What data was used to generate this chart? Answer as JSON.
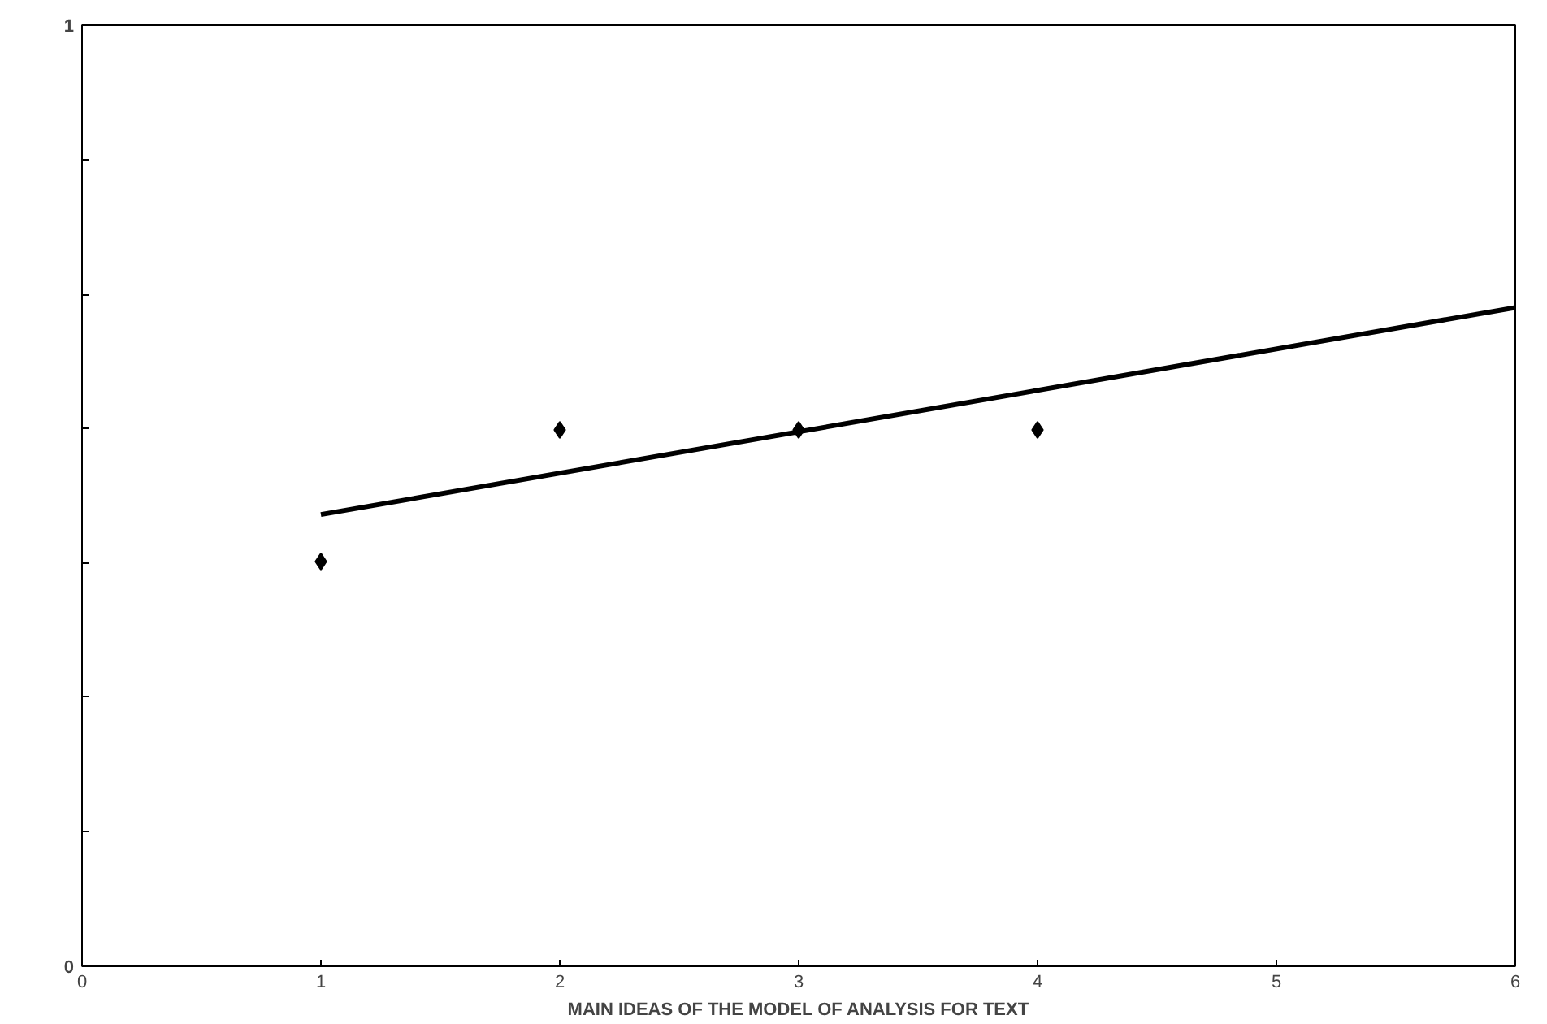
{
  "chart_data": {
    "type": "scatter",
    "xlabel": "MAIN IDEAS OF THE MODEL OF ANALYSIS FOR TEXT",
    "xlim": [
      0,
      6
    ],
    "xticks": [
      0,
      1,
      2,
      3,
      4,
      5,
      6
    ],
    "ylim": [
      0,
      1
    ],
    "yticks": [
      0,
      {
        "value": 0.143,
        "label": null
      },
      {
        "value": 0.286,
        "label": null
      },
      {
        "value": 0.429,
        "label": null
      },
      {
        "value": 0.571,
        "label": null
      },
      {
        "value": 0.714,
        "label": null
      },
      {
        "value": 0.857,
        "label": null
      },
      1
    ],
    "grid": false,
    "series": [
      {
        "color": "#000000",
        "marker": "diamond",
        "x": [
          1,
          2,
          3,
          4
        ],
        "values": [
          0.43,
          0.57,
          0.57,
          0.57
        ]
      },
      {
        "type": "line",
        "color": "#000000",
        "marker": "none",
        "line_style": "solid",
        "x": [
          1,
          6
        ],
        "values": [
          0.48,
          0.7
        ]
      }
    ]
  }
}
